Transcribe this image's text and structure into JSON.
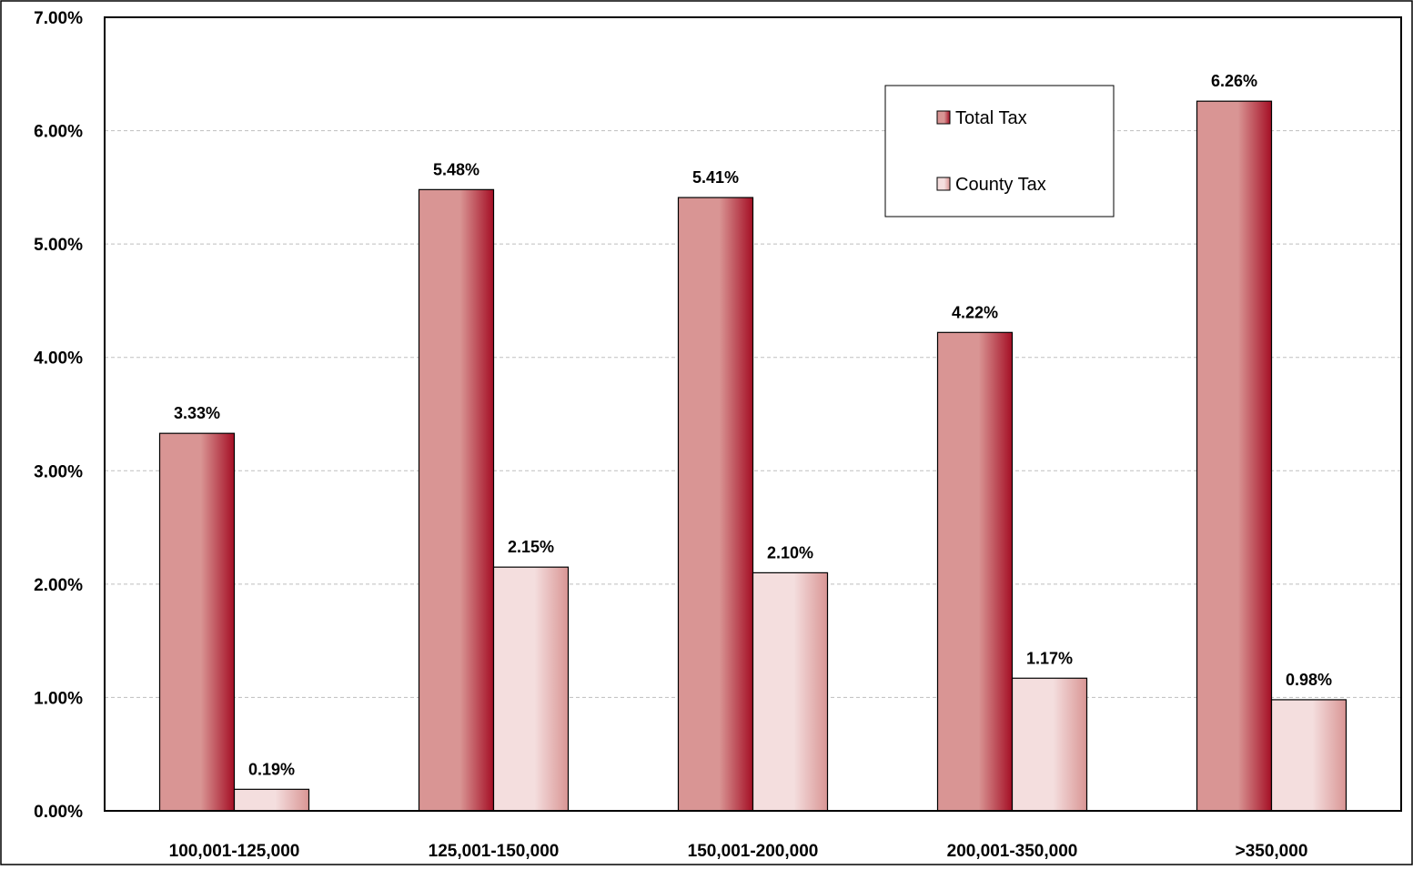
{
  "chart_data": {
    "type": "bar",
    "categories": [
      "100,001-125,000",
      "125,001-150,000",
      "150,001-200,000",
      "200,001-350,000",
      ">350,000"
    ],
    "series": [
      {
        "name": "Total Tax",
        "values": [
          3.33,
          5.48,
          5.41,
          4.22,
          6.26
        ],
        "labels": [
          "3.33%",
          "5.48%",
          "5.41%",
          "4.22%",
          "6.26%"
        ],
        "color_light": "#d99594",
        "color_dark": "#a50f25"
      },
      {
        "name": "County Tax",
        "values": [
          0.19,
          2.15,
          2.1,
          1.17,
          0.98
        ],
        "labels": [
          "0.19%",
          "2.15%",
          "2.10%",
          "1.17%",
          "0.98%"
        ],
        "color_light": "#f4dede",
        "color_dark": "#d99594"
      }
    ],
    "ylim": [
      0,
      7
    ],
    "yticks": [
      0,
      1,
      2,
      3,
      4,
      5,
      6,
      7
    ],
    "ytick_labels": [
      "0.00%",
      "1.00%",
      "2.00%",
      "3.00%",
      "4.00%",
      "5.00%",
      "6.00%",
      "7.00%"
    ],
    "grid": true,
    "grid_color": "#bfbfbf",
    "legend_position": "top-right"
  }
}
